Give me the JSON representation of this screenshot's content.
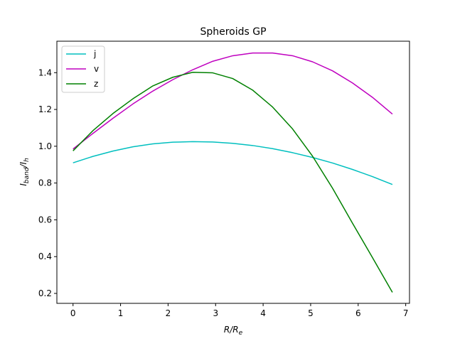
{
  "chart_data": {
    "type": "line",
    "title": "Spheroids GP",
    "xlabel": {
      "main": "R/R",
      "sub": "e"
    },
    "ylabel": {
      "main": "I",
      "sub1": "band",
      "mid": "/I",
      "sub2": "h"
    },
    "xlim": [
      -0.34,
      7.08
    ],
    "ylim": [
      0.146,
      1.571
    ],
    "xticks": [
      0,
      1,
      2,
      3,
      4,
      5,
      6,
      7
    ],
    "xtick_labels": [
      "0",
      "1",
      "2",
      "3",
      "4",
      "5",
      "6",
      "7"
    ],
    "yticks": [
      0.2,
      0.4,
      0.6,
      0.8,
      1.0,
      1.2,
      1.4
    ],
    "ytick_labels": [
      "0.2",
      "0.4",
      "0.6",
      "0.8",
      "1.0",
      "1.2",
      "1.4"
    ],
    "grid": false,
    "legend_position": "upper-left",
    "x": [
      0.0,
      0.42,
      0.84,
      1.26,
      1.68,
      2.1,
      2.52,
      2.94,
      3.36,
      3.78,
      4.2,
      4.62,
      5.04,
      5.46,
      5.88,
      6.3,
      6.72
    ],
    "series": [
      {
        "name": "j",
        "color": "#00bfbf",
        "values": [
          0.91,
          0.945,
          0.974,
          0.997,
          1.013,
          1.022,
          1.025,
          1.023,
          1.016,
          1.004,
          0.987,
          0.965,
          0.939,
          0.909,
          0.874,
          0.835,
          0.792
        ]
      },
      {
        "name": "v",
        "color": "#bf00bf",
        "values": [
          0.985,
          1.07,
          1.152,
          1.23,
          1.3,
          1.362,
          1.416,
          1.462,
          1.492,
          1.507,
          1.507,
          1.492,
          1.459,
          1.41,
          1.344,
          1.266,
          1.175
        ]
      },
      {
        "name": "z",
        "color": "#008000",
        "values": [
          0.975,
          1.085,
          1.178,
          1.258,
          1.328,
          1.375,
          1.402,
          1.399,
          1.368,
          1.305,
          1.213,
          1.094,
          0.946,
          0.772,
          0.582,
          0.395,
          0.206
        ]
      }
    ]
  }
}
